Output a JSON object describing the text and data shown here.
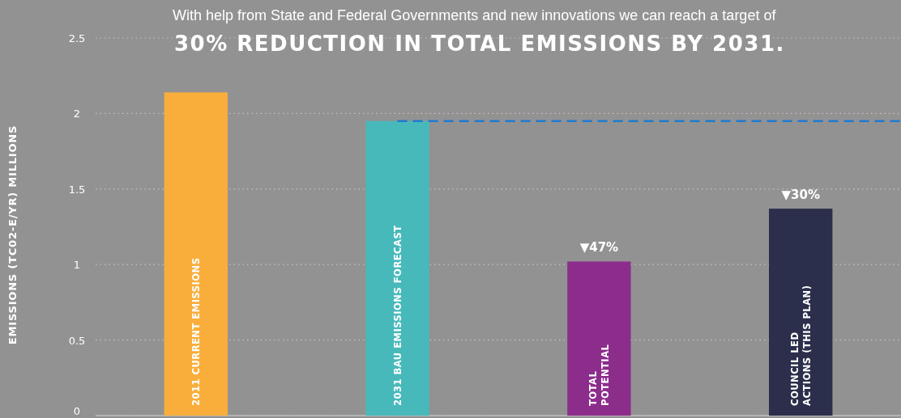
{
  "chart_data": {
    "type": "bar",
    "title": "30% REDUCTION IN TOTAL EMISSIONS BY 2031.",
    "subtitle": "With help from State and Federal Governments and new innovations we can reach a target of",
    "ylabel": "EMISSIONS (TC02-E/YR) MILLIONS",
    "categories": [
      "2011 CURRENT EMISSIONS",
      "2031 BAU EMISSIONS FORECAST",
      "TOTAL\nPOTENTIAL",
      "COUNCIL LED\nACTIONS (THIS PLAN)"
    ],
    "values": [
      2.14,
      1.95,
      1.02,
      1.37
    ],
    "colors": [
      "#f9ae3b",
      "#48b9bb",
      "#8c2d8c",
      "#2b2f4b"
    ],
    "ylim": [
      0,
      2.5
    ],
    "yticks": [
      0,
      0.5,
      1,
      1.5,
      2,
      2.5
    ],
    "grid": "y",
    "ref_lines": [
      {
        "axis": "y",
        "value": 1.95,
        "color": "#1f7bd0",
        "line_style": "dashed"
      }
    ],
    "annotations": [
      {
        "text": "▼47%",
        "x": "TOTAL\nPOTENTIAL",
        "y": 1.02
      },
      {
        "text": "▼30%",
        "x": "COUNCIL LED\nACTIONS (THIS PLAN)",
        "y": 1.37
      }
    ]
  }
}
